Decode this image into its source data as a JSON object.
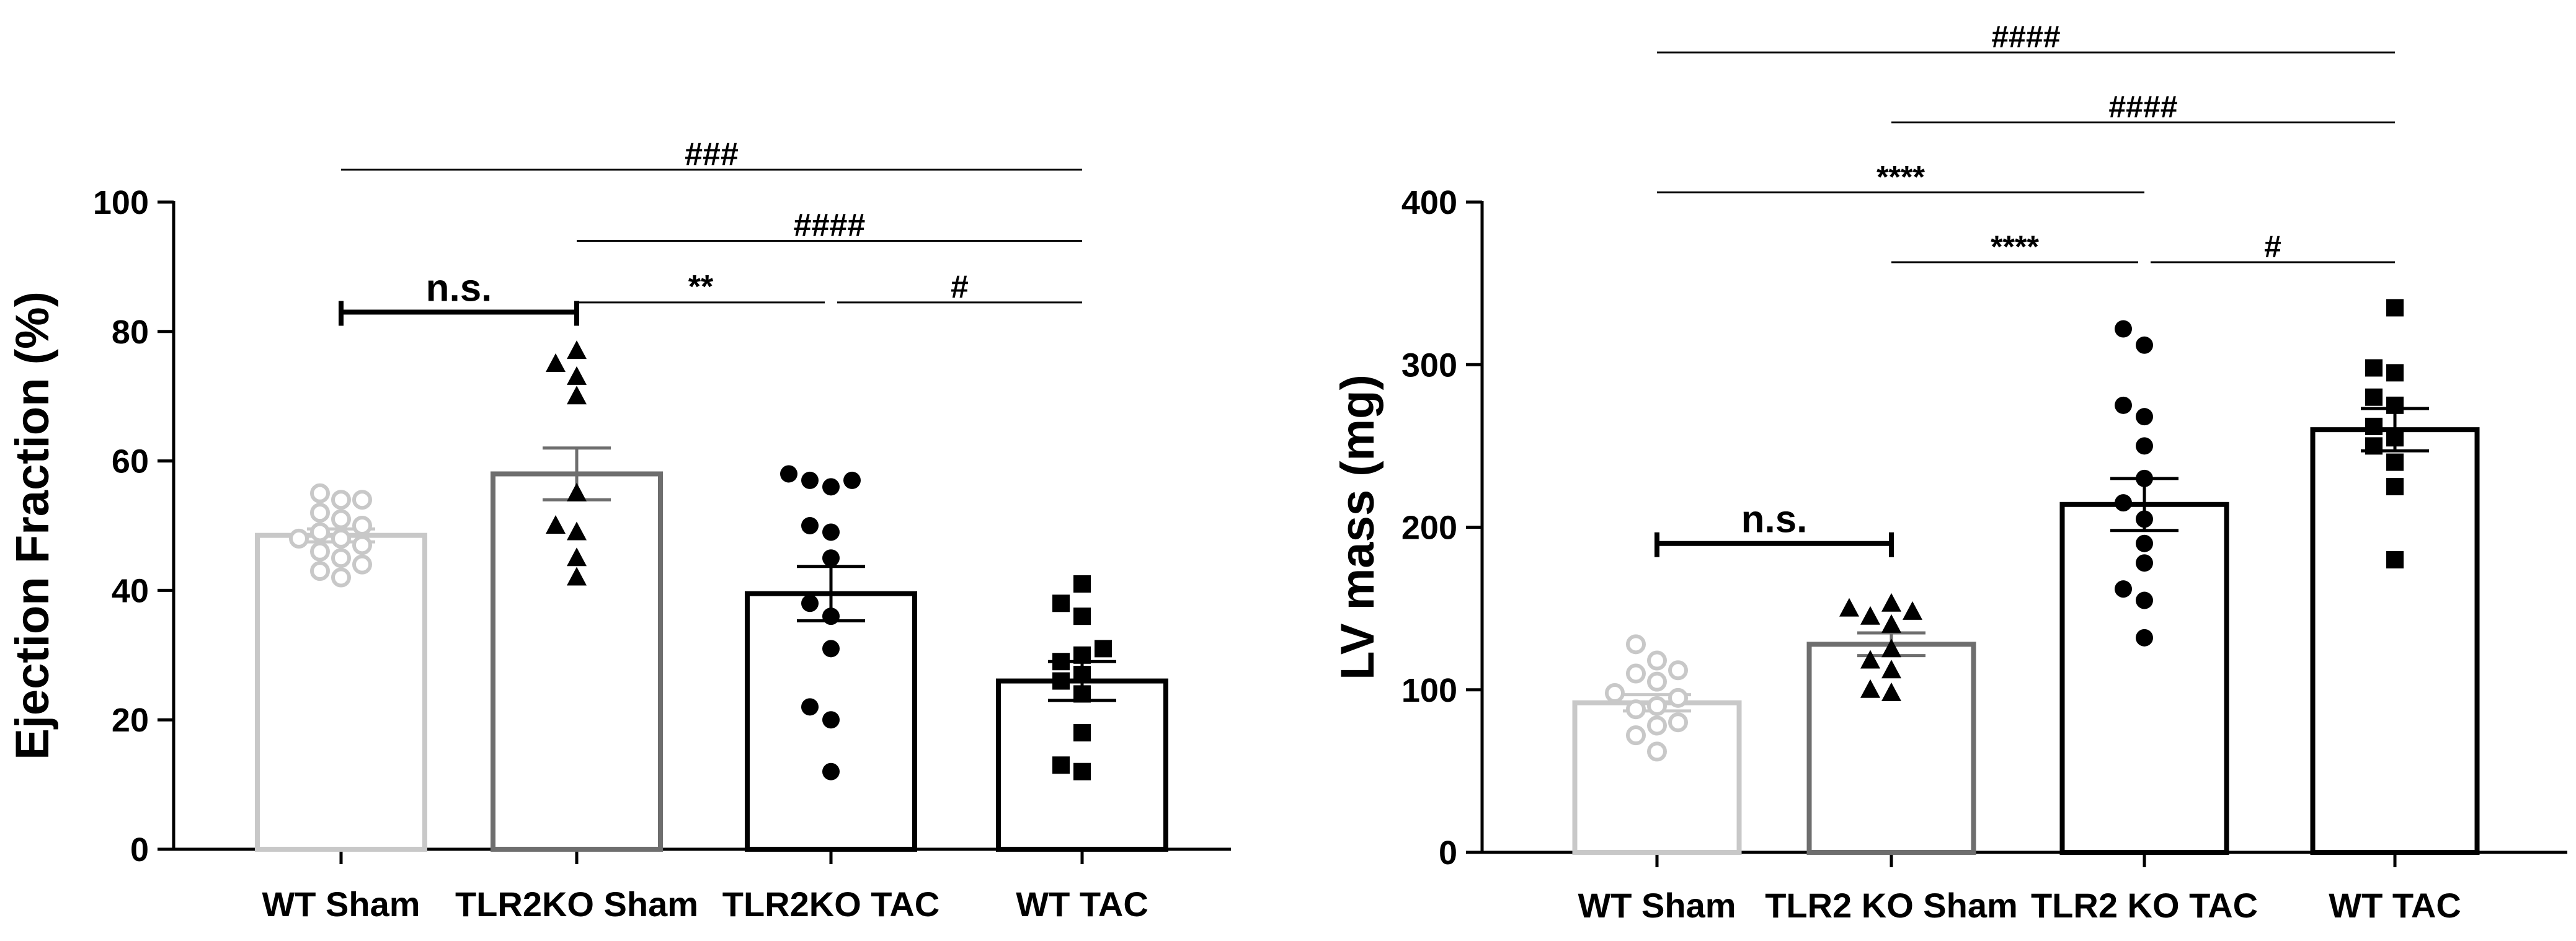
{
  "colors": {
    "wt_sham": "#c8c8c8",
    "tlr2ko_sham": "#6e6e6e",
    "tac": "#000000"
  },
  "chart_data": [
    {
      "type": "bar",
      "ylabel": "Ejection Fraction (%)",
      "ylim": [
        0,
        100
      ],
      "yticks": [
        0,
        20,
        40,
        60,
        80,
        100
      ],
      "yticklabels": [
        "0",
        "20",
        "40",
        "60",
        "80",
        "100"
      ],
      "categories": [
        "WT Sham",
        "TLR2KO Sham",
        "TLR2KO TAC",
        "WT TAC"
      ],
      "groups": [
        {
          "name": "WT Sham",
          "mean": 48.5,
          "sem": 1.0,
          "marker": "open-circle",
          "color": "#c8c8c8",
          "points": [
            42,
            43,
            44,
            45,
            46,
            47,
            48,
            48,
            49,
            50,
            51,
            52,
            54,
            54,
            55
          ]
        },
        {
          "name": "TLR2KO Sham",
          "mean": 58,
          "sem": 4.0,
          "marker": "triangle",
          "color": "#6e6e6e",
          "points": [
            42,
            45,
            49,
            50,
            55,
            70,
            73,
            75,
            77
          ]
        },
        {
          "name": "TLR2KO TAC",
          "mean": 39.5,
          "sem": 4.2,
          "marker": "circle",
          "color": "#000000",
          "points": [
            12,
            20,
            22,
            31,
            36,
            38,
            45,
            49,
            50,
            56,
            57,
            57,
            58
          ]
        },
        {
          "name": "WT TAC",
          "mean": 26,
          "sem": 3.0,
          "marker": "square",
          "color": "#000000",
          "points": [
            12,
            13,
            18,
            24,
            26,
            27,
            29,
            30,
            31,
            36,
            38,
            41
          ]
        }
      ],
      "annotations": [
        {
          "from": 0,
          "to": 3,
          "y": 105,
          "label": "###"
        },
        {
          "from": 1,
          "to": 3,
          "y": 94,
          "label": "####"
        },
        {
          "from": 1,
          "to": 2,
          "y": 84.5,
          "label": "**"
        },
        {
          "from": 2,
          "to": 3,
          "y": 84.5,
          "label": "#"
        },
        {
          "from": 0,
          "to": 1,
          "y": 83,
          "label": "n.s.",
          "style": "bracket"
        }
      ]
    },
    {
      "type": "bar",
      "ylabel": "LV mass (mg)",
      "ylim": [
        0,
        400
      ],
      "yticks": [
        0,
        100,
        200,
        300,
        400
      ],
      "yticklabels": [
        "0",
        "100",
        "200",
        "300",
        "400"
      ],
      "categories": [
        "WT Sham",
        "TLR2 KO Sham",
        "TLR2 KO TAC",
        "WT TAC"
      ],
      "groups": [
        {
          "name": "WT Sham",
          "mean": 92,
          "sem": 5.0,
          "marker": "open-circle",
          "color": "#c8c8c8",
          "points": [
            62,
            72,
            78,
            80,
            88,
            90,
            95,
            98,
            105,
            110,
            112,
            118,
            128
          ]
        },
        {
          "name": "TLR2 KO Sham",
          "mean": 128,
          "sem": 7.0,
          "marker": "triangle",
          "color": "#6e6e6e",
          "points": [
            98,
            100,
            112,
            118,
            125,
            140,
            145,
            148,
            150,
            153
          ]
        },
        {
          "name": "TLR2 KO TAC",
          "mean": 214,
          "sem": 16.0,
          "marker": "circle",
          "color": "#000000",
          "points": [
            132,
            155,
            162,
            178,
            190,
            205,
            215,
            230,
            250,
            268,
            275,
            312,
            322
          ]
        },
        {
          "name": "WT TAC",
          "mean": 260,
          "sem": 13.0,
          "marker": "square",
          "color": "#000000",
          "points": [
            180,
            225,
            240,
            250,
            255,
            262,
            275,
            280,
            295,
            298,
            335
          ]
        }
      ],
      "annotations": [
        {
          "from": 0,
          "to": 3,
          "y": 492,
          "label": "####"
        },
        {
          "from": 1,
          "to": 3,
          "y": 449,
          "label": "####"
        },
        {
          "from": 0,
          "to": 2,
          "y": 406,
          "label": "****"
        },
        {
          "from": 1,
          "to": 2,
          "y": 363,
          "label": "****"
        },
        {
          "from": 2,
          "to": 3,
          "y": 363,
          "label": "#"
        },
        {
          "from": 0,
          "to": 1,
          "y": 190,
          "label": "n.s.",
          "style": "bracket"
        }
      ]
    }
  ]
}
